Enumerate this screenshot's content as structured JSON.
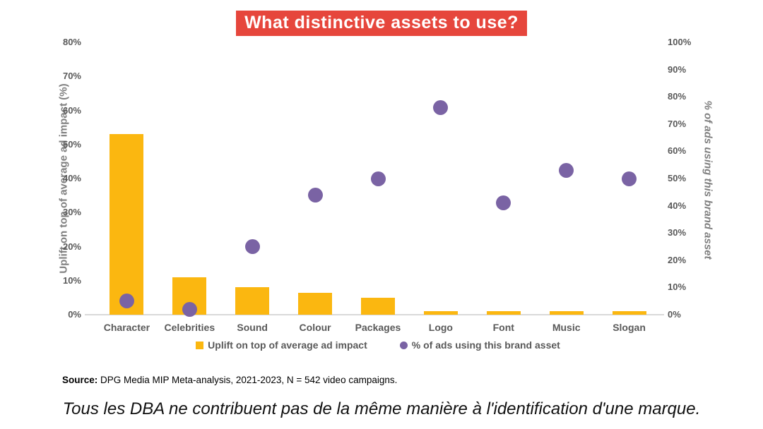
{
  "title": "What distinctive assets to use?",
  "chart_data": {
    "type": "bar",
    "subtype": "combo-bar-scatter",
    "categories": [
      "Character",
      "Celebrities",
      "Sound",
      "Colour",
      "Packages",
      "Logo",
      "Font",
      "Music",
      "Slogan"
    ],
    "series": [
      {
        "name": "Uplift on top of average ad impact",
        "type": "bar",
        "axis": "left",
        "color": "#FBB710",
        "values": [
          53,
          11,
          8,
          6.5,
          5,
          1,
          1,
          1,
          1
        ]
      },
      {
        "name": "% of ads using this brand asset",
        "type": "scatter",
        "axis": "right",
        "color": "#7A63A4",
        "values": [
          5,
          2,
          25,
          44,
          50,
          76,
          41,
          53,
          50
        ]
      }
    ],
    "title": "What distinctive assets to use?",
    "left_axis": {
      "label": "Uplift on top of average ad impact (%)",
      "min": 0,
      "max": 80,
      "step": 10,
      "tick_suffix": "%"
    },
    "right_axis": {
      "label": "% of ads using this brand asset",
      "min": 0,
      "max": 100,
      "step": 10,
      "tick_suffix": "%"
    },
    "grid": false,
    "legend_position": "bottom"
  },
  "source": {
    "label": "Source:",
    "text": " DPG Media MIP Meta-analysis, 2021-2023, N = 542 video campaigns."
  },
  "caption": "Tous les DBA ne contribuent pas de la même manière à l'identification d'une marque.",
  "colors": {
    "bar": "#FBB710",
    "dot": "#7A63A4",
    "title_background": "#E6463C",
    "title_text": "#FFFFFF",
    "tick_text": "#595959",
    "axis_title_text": "#7F7F7F",
    "baseline": "#D9D9D9"
  }
}
